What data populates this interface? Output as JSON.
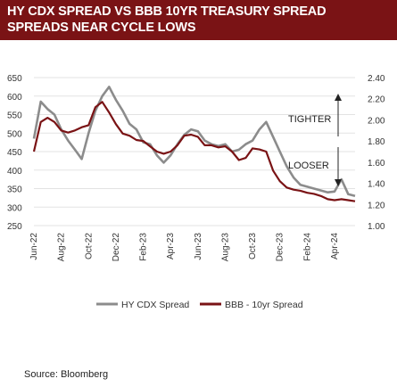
{
  "header": {
    "title_line1": "HY CDX SPREAD VS BBB 10YR TREASURY SPREAD",
    "title_line2": "SPREADS NEAR CYCLE LOWS",
    "background": "#7a1315"
  },
  "source": "Source:  Bloomberg",
  "chart_data": {
    "type": "line",
    "title": "HY CDX SPREAD VS BBB 10YR TREASURY SPREAD",
    "subtitle": "SPREADS NEAR CYCLE LOWS",
    "x_tick_labels": [
      "Jun-22",
      "Aug-22",
      "Oct-22",
      "Dec-22",
      "Feb-23",
      "Apr-23",
      "Jun-23",
      "Aug-23",
      "Oct-23",
      "Dec-23",
      "Feb-24",
      "Apr-24"
    ],
    "left_axis": {
      "ticks": [
        250,
        300,
        350,
        400,
        450,
        500,
        550,
        600,
        650
      ],
      "range": [
        250,
        650
      ]
    },
    "right_axis": {
      "ticks": [
        "1.00",
        "1.20",
        "1.40",
        "1.60",
        "1.80",
        "2.00",
        "2.20",
        "2.40"
      ],
      "range": [
        1.0,
        2.4
      ]
    },
    "annotations": {
      "tighter": "TIGHTER",
      "looser": "LOOSER"
    },
    "grid": "horizontal",
    "legend_position": "bottom",
    "series": [
      {
        "name": "HY CDX Spread",
        "axis": "left",
        "color": "#8c8c8c",
        "x": [
          0,
          0.25,
          0.5,
          0.75,
          1,
          1.25,
          1.5,
          1.75,
          2,
          2.25,
          2.5,
          2.75,
          3,
          3.25,
          3.5,
          3.75,
          4,
          4.25,
          4.5,
          4.75,
          5,
          5.25,
          5.5,
          5.75,
          6,
          6.25,
          6.5,
          6.75,
          7,
          7.25,
          7.5,
          7.75,
          8,
          8.25,
          8.5,
          8.75,
          9,
          9.25,
          9.5,
          9.75,
          10,
          10.25,
          10.5,
          10.75,
          11,
          11.25,
          11.5,
          11.75
        ],
        "values": [
          485,
          585,
          565,
          550,
          510,
          480,
          455,
          430,
          500,
          560,
          600,
          625,
          590,
          560,
          525,
          510,
          475,
          470,
          440,
          420,
          440,
          470,
          495,
          510,
          505,
          480,
          470,
          465,
          470,
          450,
          455,
          470,
          480,
          510,
          530,
          490,
          450,
          410,
          380,
          360,
          355,
          350,
          345,
          340,
          342,
          375,
          335,
          330
        ]
      },
      {
        "name": "BBB - 10yr Spread",
        "axis": "right",
        "color": "#7a1315",
        "x": [
          0,
          0.25,
          0.5,
          0.75,
          1,
          1.25,
          1.5,
          1.75,
          2,
          2.25,
          2.5,
          2.75,
          3,
          3.25,
          3.5,
          3.75,
          4,
          4.25,
          4.5,
          4.75,
          5,
          5.25,
          5.5,
          5.75,
          6,
          6.25,
          6.5,
          6.75,
          7,
          7.25,
          7.5,
          7.75,
          8,
          8.25,
          8.5,
          8.75,
          9,
          9.25,
          9.5,
          9.75,
          10,
          10.25,
          10.5,
          10.75,
          11,
          11.25,
          11.5,
          11.75
        ],
        "values": [
          1.7,
          1.98,
          2.02,
          1.98,
          1.9,
          1.88,
          1.9,
          1.93,
          1.95,
          2.12,
          2.17,
          2.07,
          1.96,
          1.87,
          1.85,
          1.81,
          1.8,
          1.75,
          1.7,
          1.68,
          1.7,
          1.76,
          1.85,
          1.86,
          1.84,
          1.76,
          1.76,
          1.74,
          1.75,
          1.7,
          1.62,
          1.64,
          1.73,
          1.72,
          1.7,
          1.52,
          1.42,
          1.36,
          1.34,
          1.33,
          1.31,
          1.3,
          1.28,
          1.25,
          1.24,
          1.25,
          1.24,
          1.23
        ]
      }
    ]
  }
}
